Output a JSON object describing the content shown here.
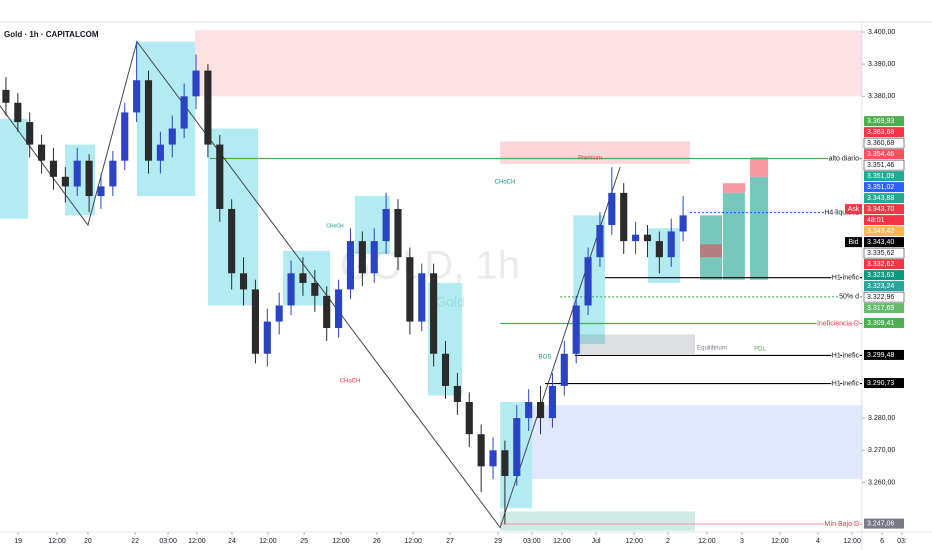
{
  "chart_data": {
    "type": "candlestick",
    "title": "Gold · 1h · CAPITALCOM",
    "watermark": "GOLD, 1h",
    "watermark_sub": "Gold",
    "up_color": "#2a44c4",
    "down_color": "#2b2b2b",
    "xlim": [
      0,
      313.8
    ],
    "ylim": [
      3244.6,
      3403.1
    ],
    "xticks": [
      {
        "value": 6.1,
        "label": "19"
      },
      {
        "value": 19.2,
        "label": "12:00"
      },
      {
        "value": 29.6,
        "label": "20"
      },
      {
        "value": 45.5,
        "label": "22"
      },
      {
        "value": 56.6,
        "label": "03:00"
      },
      {
        "value": 66.3,
        "label": "12:00"
      },
      {
        "value": 78.1,
        "label": "24"
      },
      {
        "value": 90.2,
        "label": "12:00"
      },
      {
        "value": 102.4,
        "label": "25"
      },
      {
        "value": 114.8,
        "label": "12:00"
      },
      {
        "value": 126.9,
        "label": "26"
      },
      {
        "value": 139.1,
        "label": "12:00"
      },
      {
        "value": 151.5,
        "label": "27"
      },
      {
        "value": 167.7,
        "label": "29"
      },
      {
        "value": 179.1,
        "label": "03:00"
      },
      {
        "value": 189.2,
        "label": "12:00"
      },
      {
        "value": 200.7,
        "label": "Jul"
      },
      {
        "value": 213.5,
        "label": "12:00"
      },
      {
        "value": 224.9,
        "label": "2"
      },
      {
        "value": 238,
        "label": "12:00"
      },
      {
        "value": 249.8,
        "label": "3"
      },
      {
        "value": 262.6,
        "label": "12:00"
      },
      {
        "value": 275.4,
        "label": "4"
      },
      {
        "value": 286.9,
        "label": "12:00"
      },
      {
        "value": 297,
        "label": "6"
      },
      {
        "value": 303.7,
        "label": "03:"
      }
    ],
    "yticks": [
      {
        "value": 3400,
        "label": "3.400,00"
      },
      {
        "value": 3390,
        "label": "3.390,00"
      },
      {
        "value": 3380,
        "label": "3.380,00"
      },
      {
        "value": 3280,
        "label": "3.280,00"
      },
      {
        "value": 3270,
        "label": "3.270,00"
      },
      {
        "value": 3260,
        "label": "3.260,00"
      }
    ],
    "x": [
      2,
      6,
      10,
      14,
      18,
      22,
      26,
      30,
      34,
      38,
      42,
      46,
      50,
      54,
      58,
      62,
      66,
      70,
      74,
      78,
      82,
      86,
      90,
      94,
      98,
      102,
      106,
      110,
      114,
      118,
      122,
      126,
      130,
      134,
      138,
      142,
      146,
      150,
      154,
      158,
      162,
      166,
      170,
      174,
      178,
      182,
      186,
      190,
      194,
      198,
      202,
      206,
      210,
      214,
      218,
      222,
      226,
      230
    ],
    "open": [
      3382,
      3378,
      3372,
      3365,
      3360,
      3355,
      3352,
      3360,
      3349,
      3352,
      3360,
      3375,
      3385,
      3360,
      3365,
      3370,
      3380,
      3388,
      3365,
      3345,
      3325,
      3320,
      3300,
      3310,
      3315,
      3325,
      3322,
      3318,
      3308,
      3320,
      3335,
      3325,
      3335,
      3345,
      3330,
      3310,
      3325,
      3300,
      3290,
      3285,
      3275,
      3265,
      3270,
      3262,
      3280,
      3285,
      3280,
      3290,
      3300,
      3315,
      3330,
      3340,
      3350,
      3335,
      3337,
      3335,
      3330,
      3338
    ],
    "high": [
      3386,
      3381,
      3375,
      3368,
      3364,
      3358,
      3364,
      3362,
      3356,
      3363,
      3378,
      3397,
      3388,
      3369,
      3374,
      3384,
      3393,
      3390,
      3368,
      3348,
      3330,
      3323,
      3314,
      3319,
      3329,
      3330,
      3326,
      3321,
      3323,
      3339,
      3338,
      3339,
      3350,
      3348,
      3333,
      3328,
      3328,
      3304,
      3294,
      3288,
      3278,
      3274,
      3273,
      3284,
      3289,
      3290,
      3294,
      3304,
      3318,
      3333,
      3344,
      3358,
      3353,
      3341,
      3340,
      3338,
      3342,
      3349
    ],
    "low": [
      3374,
      3369,
      3361,
      3356,
      3351,
      3347,
      3349,
      3344,
      3345,
      3349,
      3357,
      3372,
      3356,
      3356,
      3361,
      3367,
      3376,
      3361,
      3341,
      3320,
      3315,
      3297,
      3296,
      3306,
      3312,
      3318,
      3313,
      3304,
      3305,
      3317,
      3321,
      3322,
      3331,
      3326,
      3306,
      3307,
      3296,
      3286,
      3281,
      3271,
      3257,
      3261,
      3247,
      3259,
      3276,
      3275,
      3277,
      3287,
      3297,
      3312,
      3327,
      3337,
      3331,
      3331,
      3330,
      3325,
      3327,
      3335
    ],
    "close": [
      3378,
      3372,
      3365,
      3360,
      3355,
      3352,
      3360,
      3349,
      3352,
      3360,
      3375,
      3385,
      3360,
      3365,
      3370,
      3380,
      3388,
      3365,
      3345,
      3325,
      3320,
      3300,
      3310,
      3315,
      3325,
      3322,
      3318,
      3308,
      3320,
      3335,
      3325,
      3335,
      3345,
      3330,
      3310,
      3325,
      3300,
      3290,
      3285,
      3275,
      3265,
      3270,
      3262,
      3280,
      3285,
      3280,
      3290,
      3300,
      3315,
      3330,
      3340,
      3350,
      3335,
      3337,
      3335,
      3330,
      3338,
      3343
    ],
    "zones": [
      {
        "x1": 65.7,
        "x2": 290.2,
        "y1": 3380,
        "y2": 3400.5,
        "color": "rgba(242,54,69,0.15)"
      },
      {
        "x1": 168.4,
        "x2": 232.3,
        "y1": 3359,
        "y2": 3366,
        "color": "rgba(242,54,69,0.2)"
      },
      {
        "x1": 0,
        "x2": 9.4,
        "y1": 3342,
        "y2": 3373,
        "color": "rgba(0,188,212,0.3)"
      },
      {
        "x1": 21.9,
        "x2": 32,
        "y1": 3343,
        "y2": 3365,
        "color": "rgba(0,188,212,0.3)"
      },
      {
        "x1": 46.1,
        "x2": 65.7,
        "y1": 3349,
        "y2": 3397,
        "color": "rgba(0,188,212,0.3)"
      },
      {
        "x1": 70,
        "x2": 86.9,
        "y1": 3315,
        "y2": 3370,
        "color": "rgba(0,188,212,0.3)"
      },
      {
        "x1": 95.3,
        "x2": 111.1,
        "y1": 3315,
        "y2": 3332,
        "color": "rgba(0,188,212,0.3)"
      },
      {
        "x1": 119.5,
        "x2": 131.3,
        "y1": 3331,
        "y2": 3349,
        "color": "rgba(0,188,212,0.3)"
      },
      {
        "x1": 144.1,
        "x2": 155.6,
        "y1": 3287,
        "y2": 3322,
        "color": "rgba(0,188,212,0.3)"
      },
      {
        "x1": 168.4,
        "x2": 179.1,
        "y1": 3252,
        "y2": 3285,
        "color": "rgba(0,188,212,0.3)"
      },
      {
        "x1": 193,
        "x2": 203.7,
        "y1": 3303,
        "y2": 3343,
        "color": "rgba(0,188,212,0.3)"
      },
      {
        "x1": 218.2,
        "x2": 229,
        "y1": 3322,
        "y2": 3339,
        "color": "rgba(0,188,212,0.3)"
      },
      {
        "x1": 179.1,
        "x2": 290.2,
        "y1": 3261,
        "y2": 3284,
        "color": "rgba(41,98,255,0.15)"
      },
      {
        "x1": 168.4,
        "x2": 234,
        "y1": 3245,
        "y2": 3251,
        "color": "rgba(8,153,129,0.2)"
      },
      {
        "x1": 193,
        "x2": 234,
        "y1": 3300,
        "y2": 3306,
        "color": "rgba(120,123,134,0.25)"
      },
      {
        "x1": 235.7,
        "x2": 243.1,
        "y1": 3323,
        "y2": 3343,
        "color": "rgba(8,153,129,0.55)"
      },
      {
        "x1": 235.7,
        "x2": 243.1,
        "y1": 3330,
        "y2": 3334,
        "color": "rgba(242,54,69,0.5)"
      },
      {
        "x1": 243.4,
        "x2": 250.8,
        "y1": 3323,
        "y2": 3350,
        "color": "rgba(8,153,129,0.55)"
      },
      {
        "x1": 243.4,
        "x2": 250.8,
        "y1": 3350,
        "y2": 3353,
        "color": "rgba(242,54,69,0.5)"
      },
      {
        "x1": 252.5,
        "x2": 258.6,
        "y1": 3323,
        "y2": 3355,
        "color": "rgba(8,153,129,0.55)"
      },
      {
        "x1": 252.5,
        "x2": 258.6,
        "y1": 3355,
        "y2": 3361,
        "color": "rgba(242,54,69,0.5)"
      }
    ],
    "structure": {
      "x": [
        0,
        29.6,
        46.1,
        168.4,
        208.8
      ],
      "y": [
        3377,
        3340,
        3397,
        3246,
        3358
      ]
    },
    "levels": [
      {
        "label": "alto diario",
        "value": 3360.68,
        "start": 70.7,
        "color": "#4caf50",
        "dash": false,
        "text_color": "#131722"
      },
      {
        "label": "H4 liquidez",
        "value": 3343.88,
        "start": 232.3,
        "color": "#2962ff",
        "dash": true,
        "text_color": "#131722"
      },
      {
        "label": "H1 inefic",
        "value": 3323.63,
        "start": 203.7,
        "color": "#000000",
        "dash": false,
        "text_color": "#131722"
      },
      {
        "label": "50% d",
        "value": 3317.69,
        "start": 188.6,
        "color": "#4caf50",
        "dash": true,
        "text_color": "#131722"
      },
      {
        "label": "Ineficiencia D",
        "value": 3309.41,
        "start": 168.4,
        "color": "#4caf50",
        "dash": false,
        "text_color": "#f23645"
      },
      {
        "label": "H1 inefic",
        "value": 3299.48,
        "start": 193.6,
        "color": "#000000",
        "dash": false,
        "text_color": "#131722"
      },
      {
        "label": "H1 inefic",
        "value": 3290.73,
        "start": 183.5,
        "color": "#000000",
        "dash": false,
        "text_color": "#131722"
      },
      {
        "label": "Mín Bajo D",
        "value": 3247.06,
        "start": 168.4,
        "color": "#f7a1a8",
        "dash": false,
        "text_color": "#f23645"
      }
    ],
    "price_tags": [
      {
        "value": 3369.93,
        "label": "3.369,93",
        "color": "#4caf50"
      },
      {
        "value": 3363.68,
        "label": "3.363,68",
        "color": "#f23645"
      },
      {
        "value": 3360.68,
        "label": "3.360,68",
        "color": "#ffffff"
      },
      {
        "value": 3354.46,
        "label": "3.354,46",
        "color": "#f7525f"
      },
      {
        "value": 3351.46,
        "label": "3.351,46",
        "color": "#ffffff"
      },
      {
        "value": 3351.09,
        "label": "3.351,09",
        "color": "#22ab94"
      },
      {
        "value": 3351.02,
        "label": "3.351,02",
        "color": "#2962ff"
      },
      {
        "value": 3343.88,
        "label": "3.343,88",
        "color": "#22ab94"
      },
      {
        "value": 3343.7,
        "label": "3.343,70",
        "color": "#f23645",
        "side": "Ask",
        "countdown": "48:01"
      },
      {
        "value": 3343.42,
        "label": "3.343,42",
        "color": "#ffb74d"
      },
      {
        "value": 3343.4,
        "label": "3.343,40",
        "color": "#000000",
        "side": "Bid"
      },
      {
        "value": 3335.62,
        "label": "3.335,62",
        "color": "#ffffff"
      },
      {
        "value": 3332.62,
        "label": "3.332,62",
        "color": "#f23645"
      },
      {
        "value": 3323.63,
        "label": "3.323,63",
        "color": "#089981"
      },
      {
        "value": 3323.24,
        "label": "3.323,24",
        "color": "#26a69a"
      },
      {
        "value": 3322.96,
        "label": "3.322,96",
        "color": "#ffffff"
      },
      {
        "value": 3317.69,
        "label": "3.317,69",
        "color": "#66bb6a"
      },
      {
        "value": 3309.41,
        "label": "3.309,41",
        "color": "#4caf50"
      },
      {
        "value": 3299.48,
        "label": "3.299,48",
        "color": "#000000"
      },
      {
        "value": 3290.73,
        "label": "3.290,73",
        "color": "#000000"
      },
      {
        "value": 3247.06,
        "label": "3.247,06",
        "color": "#787b86"
      }
    ],
    "annotations": [
      "Premium",
      "CHoCH",
      "CHoCH",
      "BOS",
      "Equilibrium",
      "PDL",
      "CHoCH"
    ]
  }
}
